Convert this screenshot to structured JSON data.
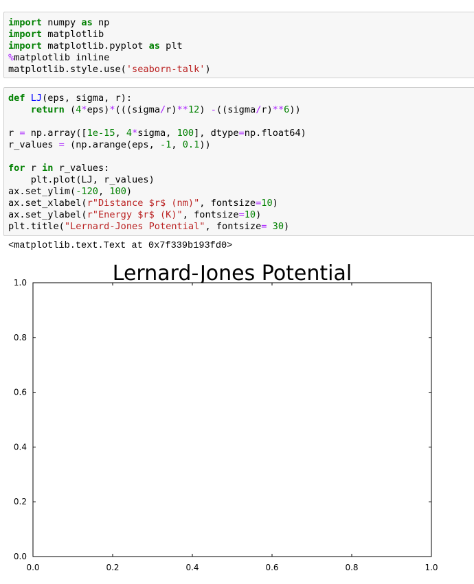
{
  "cell1": {
    "lines": [
      [
        {
          "t": "import",
          "c": "kw"
        },
        {
          "t": " numpy "
        },
        {
          "t": "as",
          "c": "kw"
        },
        {
          "t": " np"
        }
      ],
      [
        {
          "t": "import",
          "c": "kw"
        },
        {
          "t": " matplotlib"
        }
      ],
      [
        {
          "t": "import",
          "c": "kw"
        },
        {
          "t": " matplotlib.pyplot "
        },
        {
          "t": "as",
          "c": "kw"
        },
        {
          "t": " plt"
        }
      ],
      [
        {
          "t": "%",
          "c": "mg"
        },
        {
          "t": "matplotlib inline"
        }
      ],
      [
        {
          "t": "matplotlib.style.use("
        },
        {
          "t": "'seaborn-talk'",
          "c": "st"
        },
        {
          "t": ")"
        }
      ]
    ]
  },
  "cell2": {
    "lines": [
      [
        {
          "t": "def",
          "c": "kw"
        },
        {
          "t": " "
        },
        {
          "t": "LJ",
          "c": "fn"
        },
        {
          "t": "(eps, sigma, r):"
        }
      ],
      [
        {
          "t": "    "
        },
        {
          "t": "return",
          "c": "kw"
        },
        {
          "t": " ("
        },
        {
          "t": "4",
          "c": "nm"
        },
        {
          "t": "*",
          "c": "op"
        },
        {
          "t": "eps)"
        },
        {
          "t": "*",
          "c": "op"
        },
        {
          "t": "(((sigma"
        },
        {
          "t": "/",
          "c": "op"
        },
        {
          "t": "r)"
        },
        {
          "t": "**",
          "c": "op"
        },
        {
          "t": "12",
          "c": "nm"
        },
        {
          "t": ") "
        },
        {
          "t": "-",
          "c": "op"
        },
        {
          "t": "((sigma"
        },
        {
          "t": "/",
          "c": "op"
        },
        {
          "t": "r)"
        },
        {
          "t": "**",
          "c": "op"
        },
        {
          "t": "6",
          "c": "nm"
        },
        {
          "t": "))"
        }
      ],
      [],
      [
        {
          "t": "r "
        },
        {
          "t": "=",
          "c": "op"
        },
        {
          "t": " np.array(["
        },
        {
          "t": "1e-15",
          "c": "nm"
        },
        {
          "t": ", "
        },
        {
          "t": "4",
          "c": "nm"
        },
        {
          "t": "*",
          "c": "op"
        },
        {
          "t": "sigma, "
        },
        {
          "t": "100",
          "c": "nm"
        },
        {
          "t": "], dtype"
        },
        {
          "t": "=",
          "c": "op"
        },
        {
          "t": "np.float64)"
        }
      ],
      [
        {
          "t": "r_values "
        },
        {
          "t": "=",
          "c": "op"
        },
        {
          "t": " (np.arange(eps, "
        },
        {
          "t": "-1",
          "c": "nm"
        },
        {
          "t": ", "
        },
        {
          "t": "0.1",
          "c": "nm"
        },
        {
          "t": "))"
        }
      ],
      [],
      [
        {
          "t": "for",
          "c": "kw"
        },
        {
          "t": " r "
        },
        {
          "t": "in",
          "c": "kw"
        },
        {
          "t": " r_values:"
        }
      ],
      [
        {
          "t": "    plt.plot(LJ, r_values)"
        }
      ],
      [
        {
          "t": "ax.set_ylim("
        },
        {
          "t": "-120",
          "c": "nm"
        },
        {
          "t": ", "
        },
        {
          "t": "100",
          "c": "nm"
        },
        {
          "t": ")"
        }
      ],
      [
        {
          "t": "ax.set_xlabel("
        },
        {
          "t": "r\"Distance $r$ (nm)\"",
          "c": "st"
        },
        {
          "t": ", fontsize"
        },
        {
          "t": "=",
          "c": "op"
        },
        {
          "t": "10",
          "c": "nm"
        },
        {
          "t": ")"
        }
      ],
      [
        {
          "t": "ax.set_ylabel("
        },
        {
          "t": "r\"Energy $r$ (K)\"",
          "c": "st"
        },
        {
          "t": ", fontsize"
        },
        {
          "t": "=",
          "c": "op"
        },
        {
          "t": "10",
          "c": "nm"
        },
        {
          "t": ")"
        }
      ],
      [
        {
          "t": "plt.title("
        },
        {
          "t": "\"Lernard-Jones Potential\"",
          "c": "st"
        },
        {
          "t": ", fontsize"
        },
        {
          "t": "=",
          "c": "op"
        },
        {
          "t": " "
        },
        {
          "t": "30",
          "c": "nm"
        },
        {
          "t": ")"
        }
      ]
    ]
  },
  "output_text": "<matplotlib.text.Text at 0x7f339b193fd0>",
  "chart_data": {
    "type": "line",
    "title": "Lernard-Jones Potential",
    "xlabel": "",
    "ylabel": "",
    "xlim": [
      0.0,
      1.0
    ],
    "ylim": [
      0.0,
      1.0
    ],
    "xticks": [
      "0.0",
      "0.2",
      "0.4",
      "0.6",
      "0.8",
      "1.0"
    ],
    "yticks": [
      "0.0",
      "0.2",
      "0.4",
      "0.6",
      "0.8",
      "1.0"
    ],
    "series": [],
    "grid": false
  }
}
